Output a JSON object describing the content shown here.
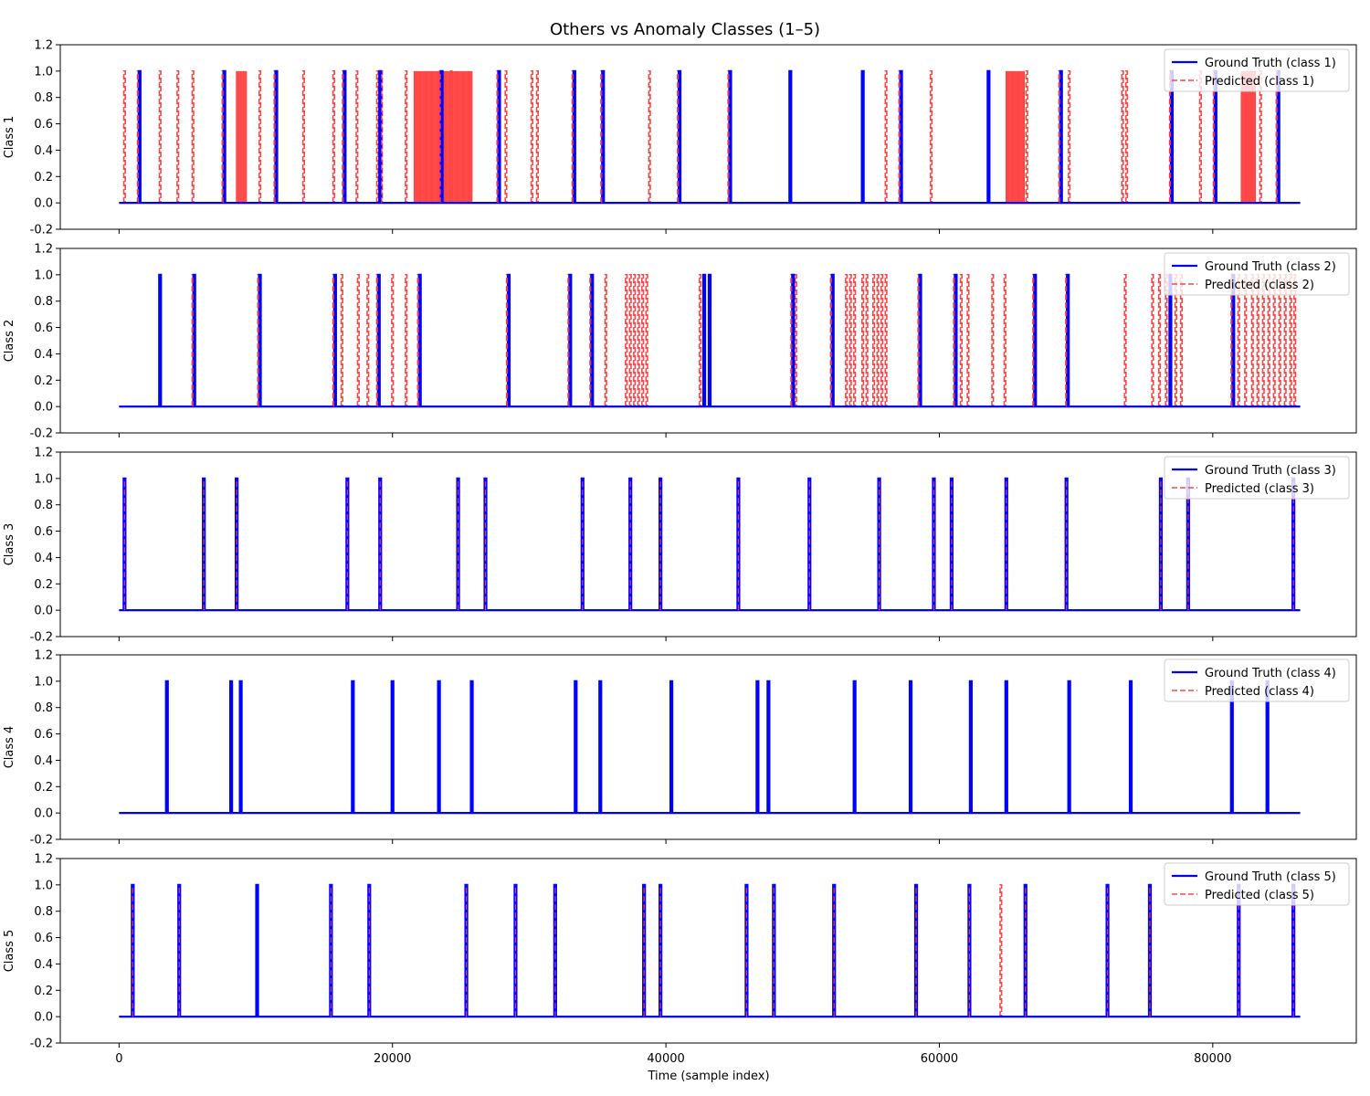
{
  "chart_data": {
    "type": "line",
    "title": "Others vs Anomaly Classes (1–5)",
    "xlabel": "Time (sample index)",
    "xlim": [
      -4300,
      90500
    ],
    "ylim": [
      -0.2,
      1.2
    ],
    "x_ticks": [
      0,
      20000,
      40000,
      60000,
      80000
    ],
    "y_ticks": [
      -0.2,
      0.0,
      0.2,
      0.4,
      0.6,
      0.8,
      1.0,
      1.2
    ],
    "series_style": {
      "ground_truth": {
        "color": "#0000ff",
        "dash": "solid"
      },
      "predicted": {
        "color": "#ff4545",
        "dash": "dashed"
      }
    },
    "panels": [
      {
        "ylabel": "Class 1",
        "legend": [
          "Ground Truth (class 1)",
          "Predicted (class 1)"
        ],
        "ground_truth_spikes": [
          1500,
          7700,
          11500,
          16500,
          19100,
          23600,
          27800,
          33300,
          35400,
          41000,
          44700,
          49100,
          54400,
          57200,
          63600,
          68900,
          77000,
          80200,
          84800
        ],
        "predicted_spikes": [
          400,
          1400,
          3000,
          4300,
          5400,
          7600,
          10300,
          11400,
          13500,
          15700,
          16400,
          17400,
          18900,
          19200,
          21000,
          23500,
          24300,
          27700,
          28300,
          30200,
          30600,
          33200,
          35300,
          38800,
          40900,
          44600,
          56100,
          57100,
          59400,
          66400,
          68800,
          69500,
          73400,
          73700,
          76900,
          79100,
          80100,
          83500,
          84700
        ],
        "predicted_bands": [
          [
            8600,
            9300
          ],
          [
            21600,
            25800
          ],
          [
            64900,
            66200
          ],
          [
            82100,
            83100
          ]
        ]
      },
      {
        "ylabel": "Class 2",
        "legend": [
          "Ground Truth (class 2)",
          "Predicted (class 2)"
        ],
        "ground_truth_spikes": [
          3000,
          5500,
          10300,
          15800,
          19000,
          22000,
          28500,
          33000,
          34600,
          42800,
          43200,
          49300,
          52200,
          58600,
          61200,
          67000,
          69400,
          76900,
          81500
        ],
        "predicted_spikes": [
          5400,
          10200,
          15700,
          16300,
          17500,
          18200,
          18900,
          20000,
          21000,
          21900,
          28400,
          32900,
          34500,
          35600,
          37100,
          37400,
          37700,
          38000,
          38300,
          38600,
          42500,
          49200,
          49500,
          52100,
          53200,
          53500,
          53800,
          54400,
          54700,
          55200,
          55500,
          55800,
          56100,
          58500,
          61100,
          61600,
          62100,
          63900,
          64800,
          66900,
          69300,
          73600,
          75600,
          76100,
          76600,
          77300,
          77700,
          81400,
          81900,
          82400,
          82900,
          83300,
          83700,
          84100,
          84500,
          84900,
          85300,
          85700,
          86000
        ],
        "predicted_bands": []
      },
      {
        "ylabel": "Class 3",
        "legend": [
          "Ground Truth (class 3)",
          "Predicted (class 3)"
        ],
        "ground_truth_spikes": [
          400,
          6200,
          8600,
          16700,
          19100,
          24800,
          26800,
          33900,
          37400,
          39600,
          45300,
          50500,
          55600,
          59600,
          60900,
          64900,
          69300,
          76200,
          78200,
          85900
        ],
        "predicted_spikes": [
          400,
          6200,
          8600,
          16700,
          19100,
          24800,
          26800,
          33900,
          37400,
          39600,
          45300,
          50500,
          55600,
          59600,
          60900,
          64900,
          69300,
          76200,
          78200,
          85900
        ],
        "predicted_bands": []
      },
      {
        "ylabel": "Class 4",
        "legend": [
          "Ground Truth (class 4)",
          "Predicted (class 4)"
        ],
        "ground_truth_spikes": [
          3500,
          8200,
          8900,
          17100,
          20000,
          23400,
          25800,
          33400,
          35200,
          40400,
          46700,
          47500,
          53800,
          57900,
          62300,
          64900,
          69500,
          74000,
          81400,
          84000
        ],
        "predicted_spikes": [],
        "predicted_bands": []
      },
      {
        "ylabel": "Class 5",
        "legend": [
          "Ground Truth (class 5)",
          "Predicted (class 5)"
        ],
        "ground_truth_spikes": [
          1000,
          4400,
          10100,
          15500,
          18300,
          25400,
          29000,
          31900,
          38400,
          39600,
          45900,
          47900,
          52300,
          58300,
          62200,
          66300,
          72300,
          75400,
          81900,
          85900
        ],
        "predicted_spikes": [
          1000,
          4400,
          15500,
          18300,
          25400,
          29000,
          31900,
          38400,
          39600,
          45900,
          47900,
          52300,
          58300,
          62200,
          64500,
          66300,
          72300,
          75400,
          81900,
          85900
        ],
        "predicted_bands": []
      }
    ]
  }
}
